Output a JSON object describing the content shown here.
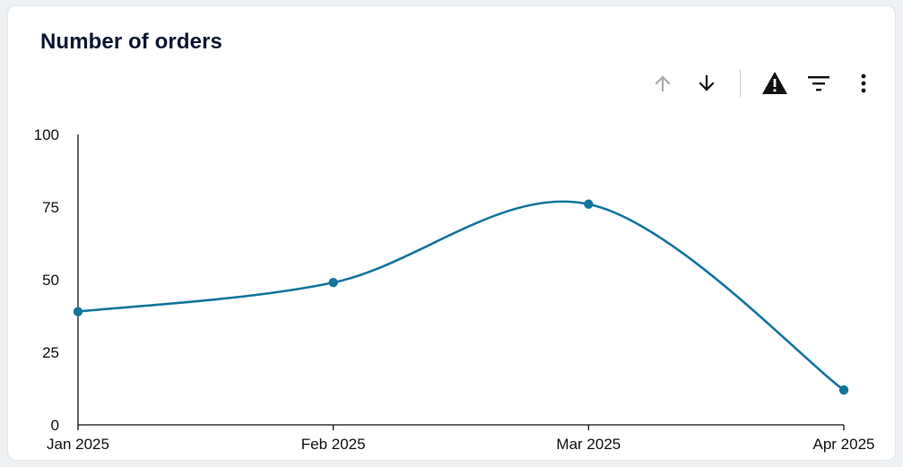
{
  "card": {
    "title": "Number of orders"
  },
  "toolbar": {
    "icons": [
      "arrow-up-icon",
      "arrow-down-icon",
      "warning-icon",
      "filter-icon",
      "more-vert-icon"
    ]
  },
  "colors": {
    "line": "#12759e",
    "axis": "#111111",
    "title": "#0b1530",
    "icon": "#111111",
    "icon_disabled": "#a9a9a9"
  },
  "chart_data": {
    "type": "line",
    "title": "Number of orders",
    "xlabel": "",
    "ylabel": "",
    "categories": [
      "Jan 2025",
      "Feb 2025",
      "Mar 2025",
      "Apr 2025"
    ],
    "series": [
      {
        "values": [
          39,
          49,
          76,
          12
        ]
      }
    ],
    "ylim": [
      0,
      100
    ],
    "yticks": [
      "0",
      "25",
      "50",
      "75",
      "100"
    ],
    "grid": false,
    "smooth": true,
    "markers": true
  }
}
